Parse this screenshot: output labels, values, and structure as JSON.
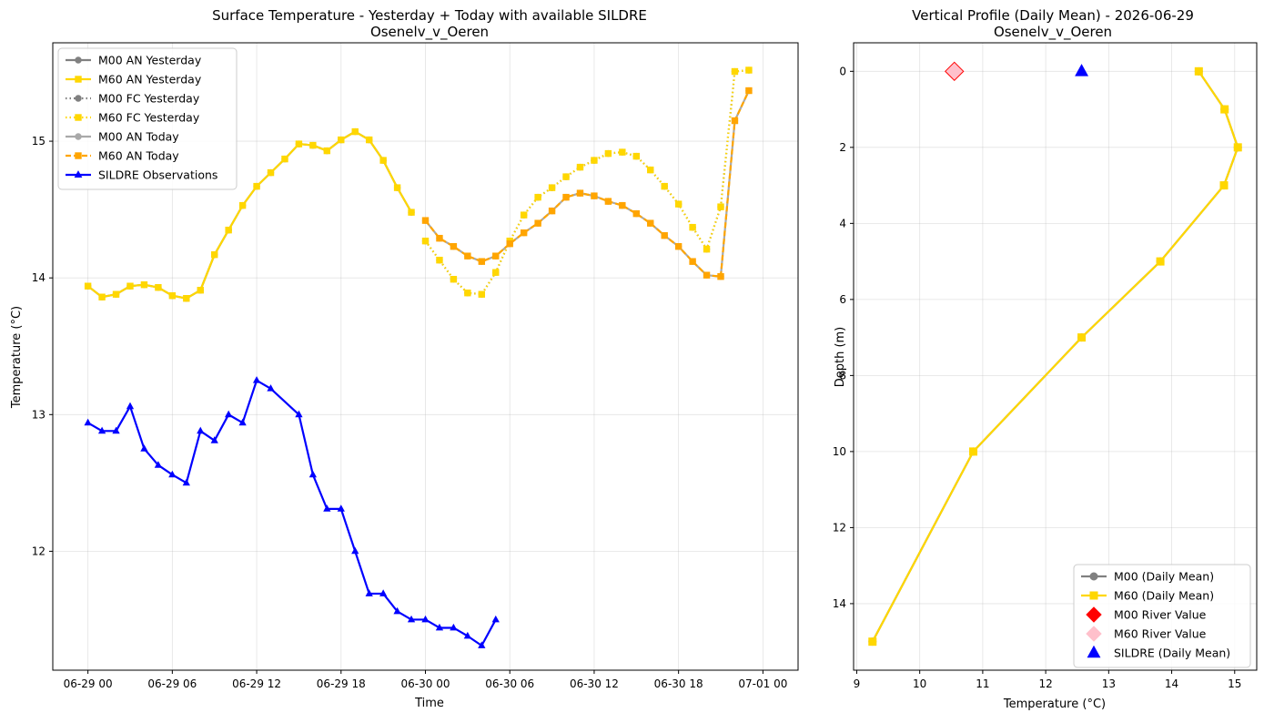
{
  "chart_data": [
    {
      "type": "line",
      "title": "Surface Temperature - Yesterday + Today with available SILDRE",
      "subtitle": "Osenelv_v_Oeren",
      "xlabel": "Time",
      "ylabel": "Temperature (°C)",
      "x_unit": "hours from 2026-06-29 00:00",
      "xlim": [
        -2.5,
        50.5
      ],
      "ylim": [
        11.13,
        15.72
      ],
      "x_ticks": [
        {
          "value": 0,
          "label": "06-29 00"
        },
        {
          "value": 6,
          "label": "06-29 06"
        },
        {
          "value": 12,
          "label": "06-29 12"
        },
        {
          "value": 18,
          "label": "06-29 18"
        },
        {
          "value": 24,
          "label": "06-30 00"
        },
        {
          "value": 30,
          "label": "06-30 06"
        },
        {
          "value": 36,
          "label": "06-30 12"
        },
        {
          "value": 42,
          "label": "06-30 18"
        },
        {
          "value": 48,
          "label": "07-01 00"
        }
      ],
      "y_ticks": [
        12,
        13,
        14,
        15
      ],
      "grid": true,
      "legend_position": "top-left",
      "series": [
        {
          "name": "M00 AN Yesterday",
          "color": "#808080",
          "style": "solid",
          "marker": "circle",
          "x": [
            0,
            1,
            2,
            3,
            4,
            5,
            6,
            7,
            8,
            9,
            10,
            11,
            12,
            13,
            14,
            15,
            16,
            17,
            18,
            19,
            20,
            21,
            22,
            23
          ],
          "y": [
            13.94,
            13.86,
            13.88,
            13.94,
            13.95,
            13.93,
            13.87,
            13.85,
            13.91,
            14.17,
            14.35,
            14.53,
            14.67,
            14.77,
            14.87,
            14.98,
            14.97,
            14.93,
            15.01,
            15.07,
            15.01,
            14.86,
            14.66,
            14.48
          ]
        },
        {
          "name": "M60 AN Yesterday",
          "color": "#FFD700",
          "style": "solid",
          "marker": "square",
          "x": [
            0,
            1,
            2,
            3,
            4,
            5,
            6,
            7,
            8,
            9,
            10,
            11,
            12,
            13,
            14,
            15,
            16,
            17,
            18,
            19,
            20,
            21,
            22,
            23
          ],
          "y": [
            13.94,
            13.86,
            13.88,
            13.94,
            13.95,
            13.93,
            13.87,
            13.85,
            13.91,
            14.17,
            14.35,
            14.53,
            14.67,
            14.77,
            14.87,
            14.98,
            14.97,
            14.93,
            15.01,
            15.07,
            15.01,
            14.86,
            14.66,
            14.48
          ]
        },
        {
          "name": "M00 FC Yesterday",
          "color": "#808080",
          "style": "dotted",
          "marker": "circle",
          "x": [
            24,
            25,
            26,
            27,
            28,
            29,
            30,
            31,
            32,
            33,
            34,
            35,
            36,
            37,
            38,
            39,
            40,
            41,
            42,
            43,
            44,
            45,
            46,
            47
          ],
          "y": [
            14.27,
            14.13,
            13.99,
            13.89,
            13.88,
            14.04,
            14.27,
            14.46,
            14.59,
            14.66,
            14.74,
            14.81,
            14.86,
            14.91,
            14.92,
            14.89,
            14.79,
            14.67,
            14.54,
            14.37,
            14.21,
            14.52,
            15.51,
            15.52
          ]
        },
        {
          "name": "M60 FC Yesterday",
          "color": "#FFD700",
          "style": "dotted",
          "marker": "square",
          "x": [
            24,
            25,
            26,
            27,
            28,
            29,
            30,
            31,
            32,
            33,
            34,
            35,
            36,
            37,
            38,
            39,
            40,
            41,
            42,
            43,
            44,
            45,
            46,
            47
          ],
          "y": [
            14.27,
            14.13,
            13.99,
            13.89,
            13.88,
            14.04,
            14.27,
            14.46,
            14.59,
            14.66,
            14.74,
            14.81,
            14.86,
            14.91,
            14.92,
            14.89,
            14.79,
            14.67,
            14.54,
            14.37,
            14.21,
            14.52,
            15.51,
            15.52
          ]
        },
        {
          "name": "M00 AN Today",
          "color": "#A9A9A9",
          "style": "solid",
          "marker": "circle",
          "x": [
            24,
            25,
            26,
            27,
            28,
            29,
            30,
            31,
            32,
            33,
            34,
            35,
            36,
            37,
            38,
            39,
            40,
            41,
            42,
            43,
            44,
            45,
            46,
            47
          ],
          "y": [
            14.42,
            14.29,
            14.23,
            14.16,
            14.12,
            14.16,
            14.25,
            14.33,
            14.4,
            14.49,
            14.59,
            14.62,
            14.6,
            14.56,
            14.53,
            14.47,
            14.4,
            14.31,
            14.23,
            14.12,
            14.02,
            14.01,
            15.15,
            15.37
          ]
        },
        {
          "name": "M60 AN Today",
          "color": "#FFA500",
          "style": "dashed",
          "marker": "square",
          "x": [
            24,
            25,
            26,
            27,
            28,
            29,
            30,
            31,
            32,
            33,
            34,
            35,
            36,
            37,
            38,
            39,
            40,
            41,
            42,
            43,
            44,
            45,
            46,
            47
          ],
          "y": [
            14.42,
            14.29,
            14.23,
            14.16,
            14.12,
            14.16,
            14.25,
            14.33,
            14.4,
            14.49,
            14.59,
            14.62,
            14.6,
            14.56,
            14.53,
            14.47,
            14.4,
            14.31,
            14.23,
            14.12,
            14.02,
            14.01,
            15.15,
            15.37
          ]
        },
        {
          "name": "SILDRE Observations",
          "color": "#0000FF",
          "style": "solid",
          "marker": "triangle",
          "x": [
            0,
            1,
            2,
            3,
            4,
            5,
            6,
            7,
            8,
            9,
            10,
            11,
            12,
            13,
            15,
            16,
            17,
            18,
            19,
            20,
            21,
            22,
            23,
            24,
            25,
            26,
            27,
            28,
            29
          ],
          "y": [
            12.94,
            12.88,
            12.88,
            13.06,
            12.75,
            12.63,
            12.56,
            12.5,
            12.88,
            12.81,
            13.0,
            12.94,
            13.25,
            13.19,
            13.0,
            12.56,
            12.31,
            12.31,
            12.0,
            11.69,
            11.69,
            11.56,
            11.5,
            11.5,
            11.44,
            11.44,
            11.38,
            11.31,
            11.5
          ]
        }
      ]
    },
    {
      "type": "line",
      "title": "Vertical Profile (Daily Mean) - 2026-06-29",
      "subtitle": "Osenelv_v_Oeren",
      "xlabel": "Temperature (°C)",
      "ylabel": "Depth (m)",
      "xlim": [
        8.95,
        15.35
      ],
      "ylim": [
        15.75,
        -0.75
      ],
      "y_inverted": true,
      "x_ticks": [
        9,
        10,
        11,
        12,
        13,
        14,
        15
      ],
      "y_ticks": [
        0,
        2,
        4,
        6,
        8,
        10,
        12,
        14
      ],
      "grid": true,
      "legend_position": "bottom-right",
      "series": [
        {
          "name": "M00 (Daily Mean)",
          "color": "#808080",
          "style": "solid",
          "marker": "circle",
          "x": [
            14.43,
            14.84,
            15.05,
            14.83,
            13.82,
            12.57,
            10.85,
            9.25
          ],
          "y": [
            0,
            1,
            2,
            3,
            5,
            7,
            10,
            15
          ]
        },
        {
          "name": "M60 (Daily Mean)",
          "color": "#FFD700",
          "style": "solid",
          "marker": "square",
          "x": [
            14.43,
            14.84,
            15.05,
            14.83,
            13.82,
            12.57,
            10.85,
            9.25
          ],
          "y": [
            0,
            1,
            2,
            3,
            5,
            7,
            10,
            15
          ]
        }
      ],
      "points": [
        {
          "name": "M00 River Value",
          "color": "#FF0000",
          "marker": "diamond",
          "x": 10.55,
          "y": 0,
          "legend_color": "#FF0000"
        },
        {
          "name": "M60 River Value",
          "color": "#FFC0CB",
          "marker": "diamond",
          "x": 10.55,
          "y": 0,
          "legend_color": "#FFC0CB"
        },
        {
          "name": "SILDRE (Daily Mean)",
          "color": "#0000FF",
          "marker": "triangle",
          "x": 12.57,
          "y": 0,
          "legend_color": "#0000FF"
        }
      ]
    }
  ]
}
